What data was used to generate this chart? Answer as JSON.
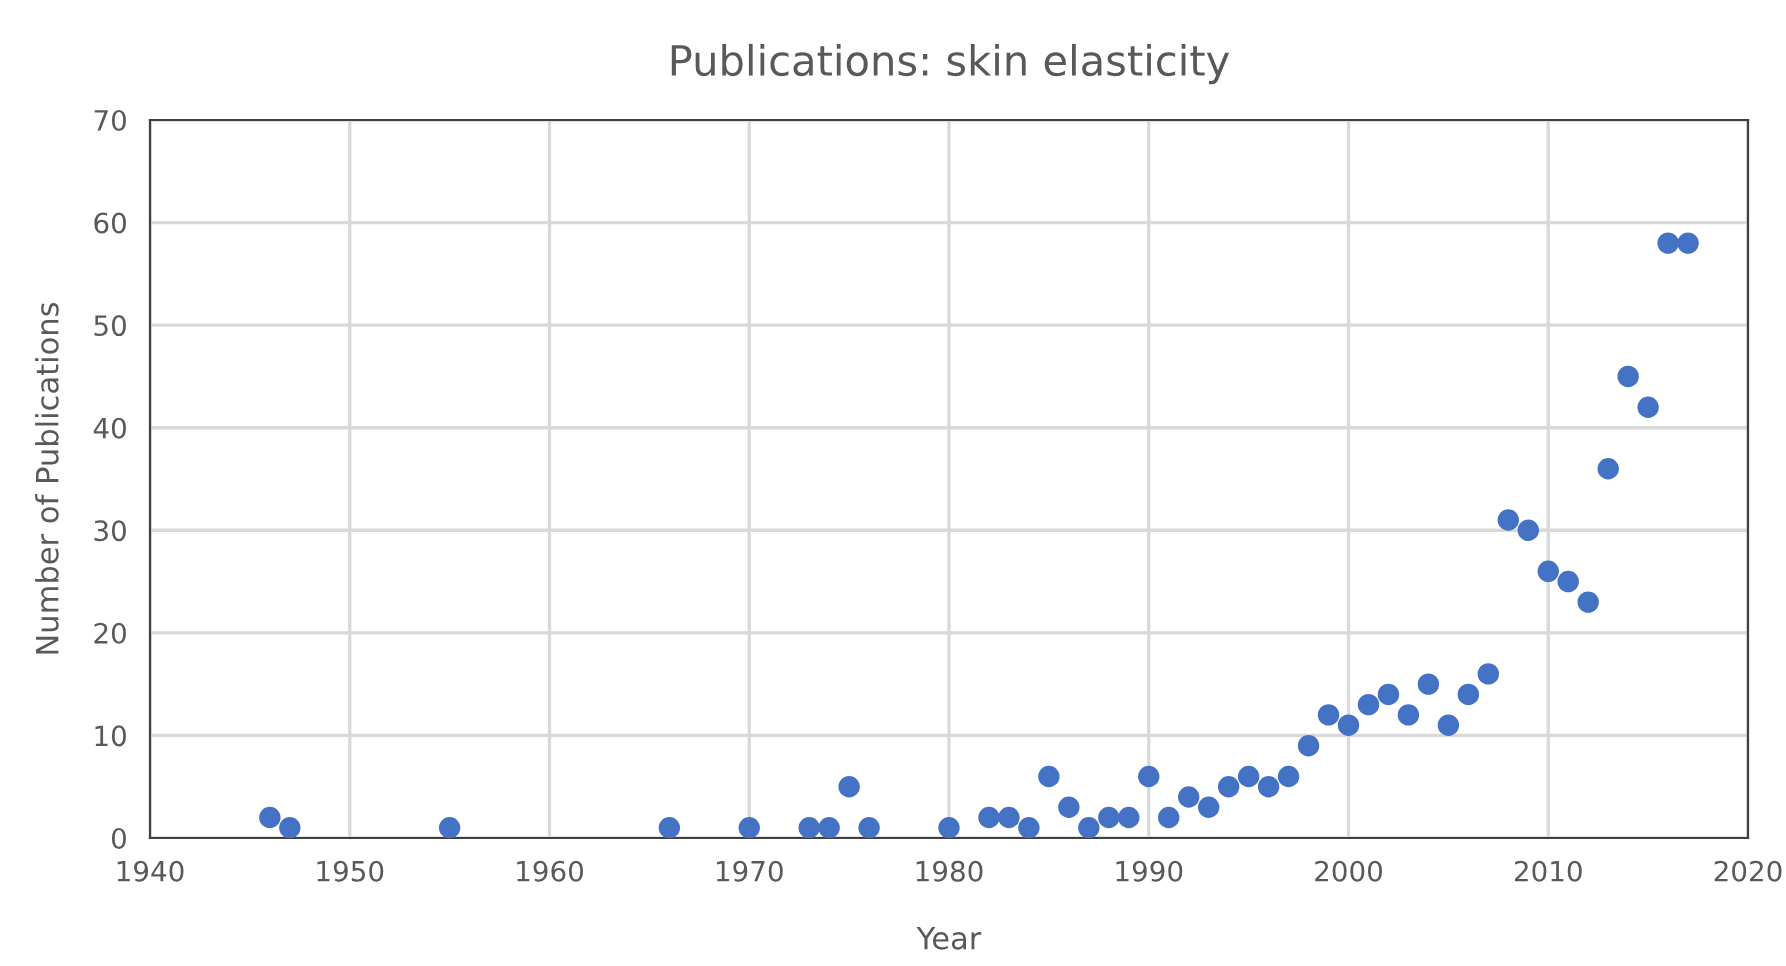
{
  "chart_data": {
    "type": "scatter",
    "title": "Publications: skin elasticity",
    "xlabel": "Year",
    "ylabel": "Number of Publications",
    "series": [
      {
        "color": "#4472c4",
        "x": [
          1946,
          1947,
          1955,
          1966,
          1970,
          1973,
          1974,
          1975,
          1976,
          1980,
          1982,
          1983,
          1984,
          1985,
          1986,
          1987,
          1988,
          1989,
          1990,
          1991,
          1992,
          1993,
          1994,
          1995,
          1996,
          1997,
          1998,
          1999,
          2000,
          2001,
          2002,
          2003,
          2004,
          2005,
          2006,
          2007,
          2008,
          2009,
          2010,
          2011,
          2012,
          2013,
          2014,
          2015,
          2016,
          2017
        ],
        "values": [
          2,
          1,
          1,
          1,
          1,
          1,
          1,
          5,
          1,
          1,
          2,
          2,
          1,
          6,
          3,
          1,
          2,
          2,
          6,
          2,
          4,
          3,
          5,
          6,
          5,
          6,
          9,
          12,
          11,
          13,
          14,
          12,
          15,
          11,
          14,
          16,
          31,
          30,
          26,
          25,
          23,
          36,
          45,
          42,
          58,
          58
        ]
      }
    ],
    "xlim": [
      1940,
      2020
    ],
    "xticks": [
      1940,
      1950,
      1960,
      1970,
      1980,
      1990,
      2000,
      2010,
      2020
    ],
    "ylim": [
      0,
      70
    ],
    "yticks": [
      0,
      10,
      20,
      30,
      40,
      50,
      60,
      70
    ],
    "grid": true,
    "marker": "circle",
    "legend": false
  }
}
